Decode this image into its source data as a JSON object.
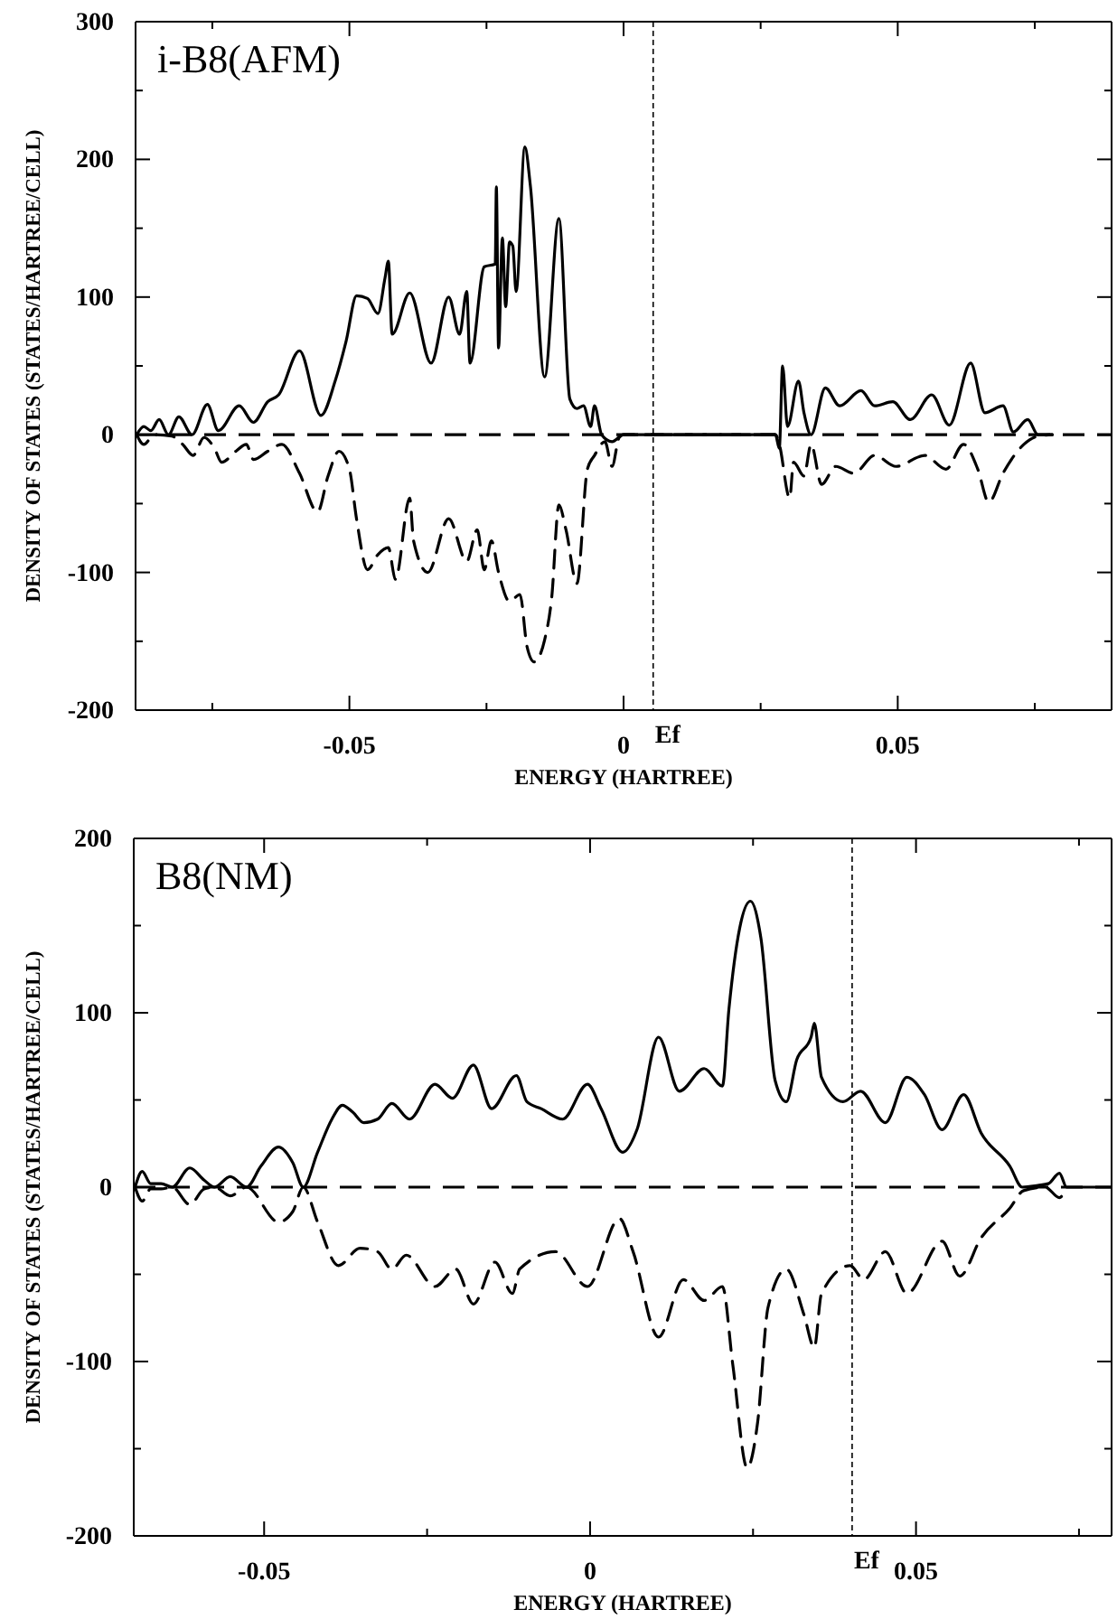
{
  "chart_data": [
    {
      "type": "line",
      "title": "i-B8(AFM)",
      "xlabel": "ENERGY (HARTREE)",
      "ylabel": "DENSITY OF STATES (STATES/HARTREE/CELL)",
      "xlim": [
        -0.089,
        0.089
      ],
      "ylim": [
        -200,
        300
      ],
      "xticks": [
        {
          "value": -0.075,
          "label": null
        },
        -0.05,
        {
          "value": -0.025,
          "label": null
        },
        0,
        {
          "value": 0.025,
          "label": null
        },
        0.05,
        {
          "value": 0.075,
          "label": null
        }
      ],
      "yticks": [
        -200,
        {
          "value": -150,
          "label": null
        },
        -100,
        {
          "value": -50,
          "label": null
        },
        0,
        {
          "value": 50,
          "label": null
        },
        100,
        {
          "value": 150,
          "label": null
        },
        200,
        {
          "value": 250,
          "label": null
        },
        300
      ],
      "grid": false,
      "ref_lines": [
        {
          "axis": "y",
          "value": 0,
          "line_style": "dashed",
          "color": "#000000"
        },
        {
          "axis": "x",
          "value": 0.0054,
          "label": "Ef",
          "line_style": "dotted",
          "color": "#000000"
        }
      ],
      "series": [
        {
          "color": "#000000",
          "line_style": "solid",
          "x": [
            -0.0888,
            -0.0875,
            -0.0862,
            -0.0847,
            -0.083,
            -0.0811,
            -0.0787,
            -0.0759,
            -0.0739,
            -0.0701,
            -0.0675,
            -0.0649,
            -0.0629,
            -0.0591,
            -0.0552,
            -0.0526,
            -0.0506,
            -0.0487,
            -0.0467,
            -0.0448,
            -0.0435,
            -0.0429,
            -0.0422,
            -0.039,
            -0.0351,
            -0.0319,
            -0.0299,
            -0.0286,
            -0.028,
            -0.0254,
            -0.0234,
            -0.0232,
            -0.0228,
            -0.0221,
            -0.0215,
            -0.0208,
            -0.0202,
            -0.0196,
            -0.018,
            -0.017,
            -0.0144,
            -0.0118,
            -0.0098,
            -0.0085,
            -0.0073,
            -0.006,
            -0.0053,
            -0.004,
            -0.0021,
            0,
            0.0277,
            0.0284,
            0.029,
            0.0299,
            0.0319,
            0.0329,
            0.0342,
            0.0368,
            0.0394,
            0.0433,
            0.0458,
            0.0491,
            0.0523,
            0.0562,
            0.0594,
            0.0633,
            0.0659,
            0.0692,
            0.0711,
            0.0737,
            0.0756,
            0.0782
          ],
          "values": [
            0,
            6,
            3,
            11,
            0,
            13,
            0,
            22,
            3,
            21,
            9,
            24,
            29,
            61,
            14,
            39,
            68,
            101,
            99,
            88,
            114,
            126,
            73,
            103,
            52,
            100,
            73,
            104,
            52,
            122,
            124,
            180,
            63,
            143,
            93,
            140,
            137,
            104,
            209,
            181,
            42,
            157,
            26,
            19,
            21,
            6,
            21,
            0,
            -5,
            0,
            0,
            -10,
            50,
            6,
            39,
            16,
            0,
            34,
            21,
            32,
            21,
            24,
            11,
            29,
            7,
            52,
            16,
            21,
            2,
            11,
            0,
            0
          ]
        },
        {
          "color": "#000000",
          "line_style": "dashed",
          "x": [
            -0.0888,
            -0.0875,
            -0.0856,
            -0.0824,
            -0.0804,
            -0.0785,
            -0.0765,
            -0.0746,
            -0.0733,
            -0.0707,
            -0.0688,
            -0.0675,
            -0.0649,
            -0.0623,
            -0.0591,
            -0.0558,
            -0.0539,
            -0.0519,
            -0.05,
            -0.0487,
            -0.0467,
            -0.0448,
            -0.0429,
            -0.0416,
            -0.039,
            -0.0383,
            -0.0357,
            -0.0319,
            -0.0286,
            -0.0267,
            -0.0254,
            -0.0241,
            -0.0228,
            -0.0208,
            -0.0189,
            -0.0176,
            -0.0163,
            -0.0144,
            -0.0131,
            -0.0118,
            -0.0105,
            -0.0085,
            -0.0066,
            -0.0053,
            -0.0034,
            -0.0021,
            -0.0008,
            0,
            0.0277,
            0.0284,
            0.0303,
            0.031,
            0.0329,
            0.0342,
            0.0361,
            0.0387,
            0.042,
            0.0458,
            0.0497,
            0.0549,
            0.0588,
            0.062,
            0.0646,
            0.0666,
            0.0692,
            0.073,
            0.0756,
            0.0782
          ],
          "values": [
            0,
            -7,
            0,
            -1,
            -7,
            -15,
            -2,
            -10,
            -20,
            -12,
            -7,
            -18,
            -12,
            -7,
            -28,
            -56,
            -30,
            -12,
            -25,
            -61,
            -98,
            -87,
            -82,
            -105,
            -46,
            -77,
            -100,
            -61,
            -92,
            -69,
            -98,
            -77,
            -100,
            -121,
            -116,
            -154,
            -165,
            -149,
            -118,
            -51,
            -69,
            -108,
            -25,
            -15,
            -5,
            -23,
            -2,
            0,
            0,
            -7,
            -46,
            -20,
            -30,
            -7,
            -36,
            -23,
            -28,
            -15,
            -23,
            -15,
            -25,
            -7,
            -25,
            -49,
            -28,
            -7,
            -1,
            0
          ]
        }
      ]
    },
    {
      "type": "line",
      "title": "B8(NM)",
      "xlabel": "ENERGY (HARTREE)",
      "ylabel": "DENSITY OF STATES (STATES/HARTREE/CELL)",
      "xlim": [
        -0.07,
        0.08
      ],
      "ylim": [
        -200,
        200
      ],
      "xticks": [
        -0.05,
        {
          "value": -0.025,
          "label": null
        },
        0,
        {
          "value": 0.025,
          "label": null
        },
        0.05,
        {
          "value": 0.075,
          "label": null
        }
      ],
      "yticks": [
        -200,
        {
          "value": -150,
          "label": null
        },
        -100,
        {
          "value": -50,
          "label": null
        },
        0,
        {
          "value": 50,
          "label": null
        },
        100,
        {
          "value": 150,
          "label": null
        },
        200
      ],
      "grid": false,
      "ref_lines": [
        {
          "axis": "y",
          "value": 0,
          "line_style": "dashed",
          "color": "#000000"
        },
        {
          "axis": "x",
          "value": 0.0402,
          "label": "Ef",
          "line_style": "dotted",
          "color": "#000000"
        }
      ],
      "series": [
        {
          "color": "#000000",
          "line_style": "solid",
          "x": [
            -0.0698,
            -0.0687,
            -0.0674,
            -0.0658,
            -0.0641,
            -0.0614,
            -0.0592,
            -0.0576,
            -0.0552,
            -0.0527,
            -0.0505,
            -0.0478,
            -0.0456,
            -0.044,
            -0.0418,
            -0.0396,
            -0.038,
            -0.0364,
            -0.0347,
            -0.0326,
            -0.0304,
            -0.0277,
            -0.0238,
            -0.0211,
            -0.0179,
            -0.0151,
            -0.0113,
            -0.0097,
            -0.0075,
            -0.0042,
            -0.0004,
            0.0017,
            0.005,
            0.0072,
            0.0105,
            0.0137,
            0.0175,
            0.0203,
            0.0213,
            0.0246,
            0.0262,
            0.0284,
            0.0301,
            0.0317,
            0.0339,
            0.0344,
            0.0355,
            0.0388,
            0.0415,
            0.0453,
            0.0486,
            0.0513,
            0.054,
            0.0573,
            0.06,
            0.0644,
            0.0663,
            0.0687,
            0.0703,
            0.072,
            0.0731,
            0.08
          ],
          "values": [
            0,
            9,
            2,
            2,
            0,
            11,
            4,
            0,
            6,
            0,
            12,
            23,
            14,
            0,
            20,
            39,
            47,
            43,
            37,
            39,
            48,
            39,
            59,
            51,
            70,
            45,
            64,
            49,
            45,
            39,
            59,
            45,
            20,
            33,
            86,
            55,
            68,
            58,
            102,
            164,
            143,
            61,
            49,
            73,
            86,
            94,
            63,
            49,
            55,
            37,
            63,
            53,
            33,
            53,
            31,
            12,
            0,
            1,
            2,
            8,
            0,
            0
          ]
        },
        {
          "color": "#000000",
          "line_style": "dashed",
          "x": [
            -0.0698,
            -0.0687,
            -0.0674,
            -0.0658,
            -0.0641,
            -0.0614,
            -0.0592,
            -0.0576,
            -0.0552,
            -0.0527,
            -0.0478,
            -0.0456,
            -0.044,
            -0.0418,
            -0.0386,
            -0.0353,
            -0.0326,
            -0.0304,
            -0.0282,
            -0.0238,
            -0.0206,
            -0.0179,
            -0.0146,
            -0.0119,
            -0.0108,
            -0.0053,
            -0.0004,
            0.0045,
            0.0066,
            0.0105,
            0.0143,
            0.0175,
            0.0203,
            0.0219,
            0.0241,
            0.0257,
            0.0273,
            0.0301,
            0.0328,
            0.0344,
            0.0355,
            0.0399,
            0.042,
            0.0453,
            0.0486,
            0.054,
            0.0567,
            0.06,
            0.0644,
            0.0665,
            0.0698,
            0.072,
            0.0731
          ],
          "values": [
            0,
            -8,
            -1,
            -1,
            0,
            -10,
            -1,
            0,
            -5,
            0,
            -20,
            -14,
            0,
            -20,
            -45,
            -35,
            -37,
            -47,
            -39,
            -57,
            -47,
            -67,
            -43,
            -61,
            -47,
            -37,
            -57,
            -18,
            -37,
            -86,
            -53,
            -65,
            -57,
            -102,
            -161,
            -135,
            -69,
            -47,
            -73,
            -92,
            -61,
            -45,
            -53,
            -37,
            -61,
            -31,
            -51,
            -29,
            -12,
            -2,
            0,
            -6,
            0
          ]
        }
      ]
    }
  ]
}
